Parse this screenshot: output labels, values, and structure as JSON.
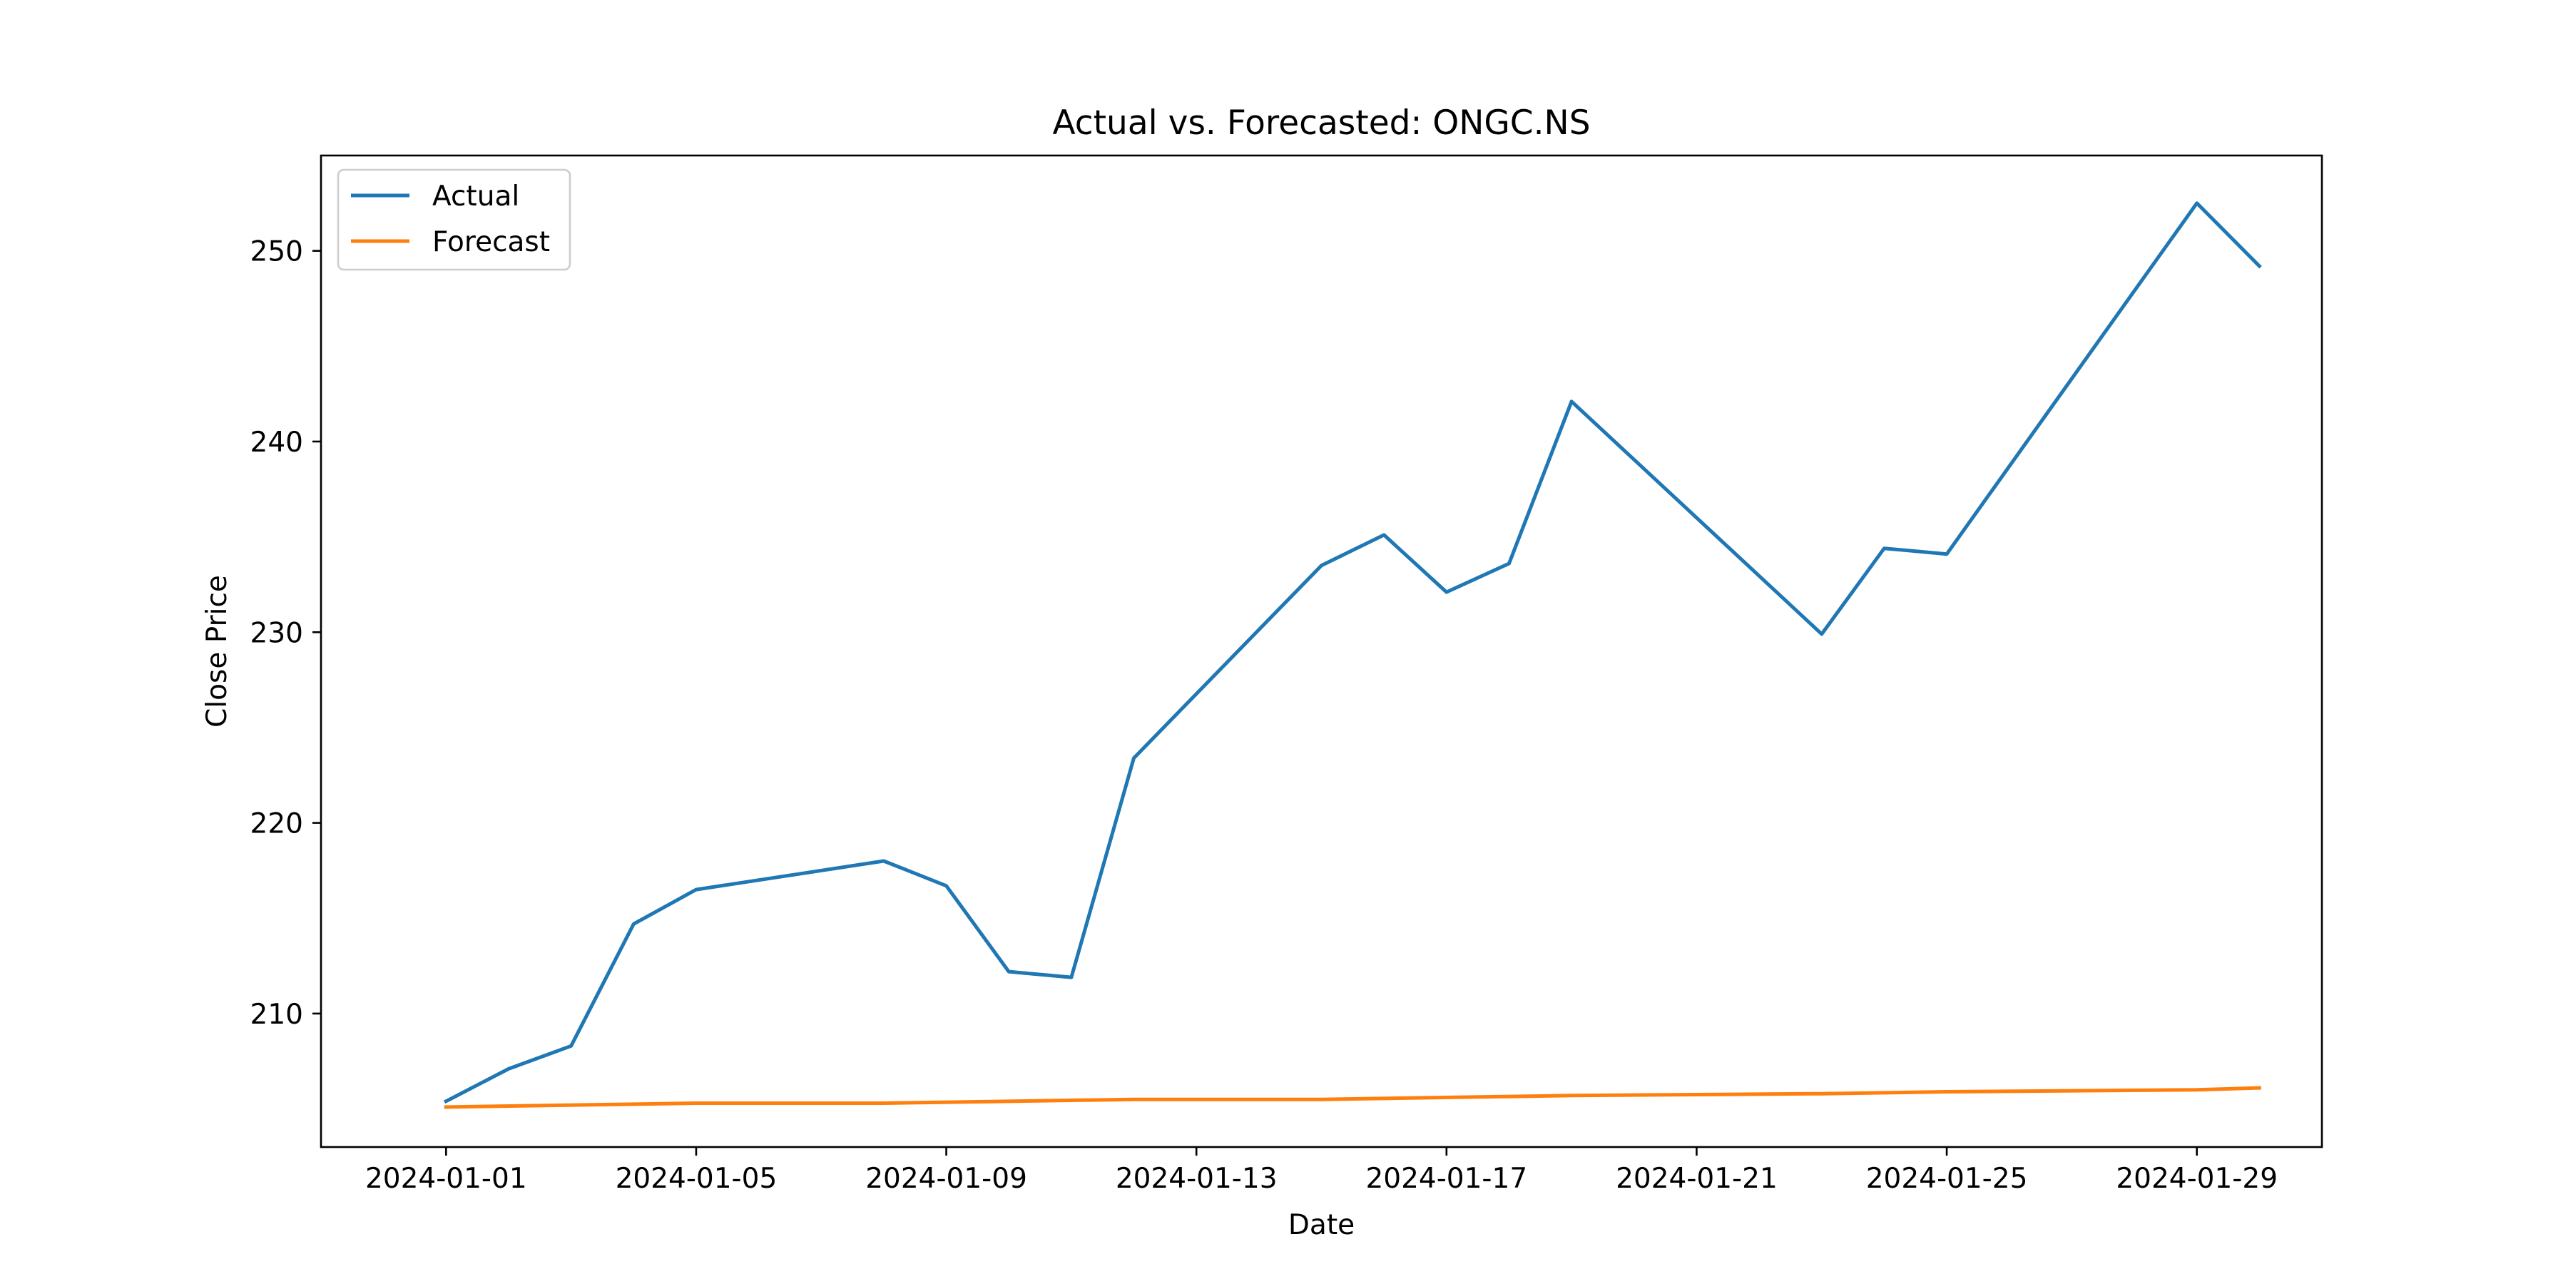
{
  "chart_data": {
    "type": "line",
    "title": "Actual vs. Forecasted: ONGC.NS",
    "xlabel": "Date",
    "ylabel": "Close Price",
    "x_axis_type": "date",
    "xlim": [
      "2023-12-30",
      "2024-01-31"
    ],
    "ylim": [
      203.0,
      255.0
    ],
    "grid": false,
    "legend_position": "upper-left",
    "x_ticks": [
      "2024-01-01",
      "2024-01-05",
      "2024-01-09",
      "2024-01-13",
      "2024-01-17",
      "2024-01-21",
      "2024-01-25",
      "2024-01-29"
    ],
    "y_ticks": [
      210,
      220,
      230,
      240,
      250
    ],
    "series": [
      {
        "name": "Actual",
        "color": "#1f77b4",
        "points": [
          {
            "x": "2024-01-01",
            "y": 205.4
          },
          {
            "x": "2024-01-02",
            "y": 207.1
          },
          {
            "x": "2024-01-03",
            "y": 208.3
          },
          {
            "x": "2024-01-04",
            "y": 214.7
          },
          {
            "x": "2024-01-05",
            "y": 216.5
          },
          {
            "x": "2024-01-08",
            "y": 218.0
          },
          {
            "x": "2024-01-09",
            "y": 216.7
          },
          {
            "x": "2024-01-10",
            "y": 212.2
          },
          {
            "x": "2024-01-11",
            "y": 211.9
          },
          {
            "x": "2024-01-12",
            "y": 223.4
          },
          {
            "x": "2024-01-15",
            "y": 233.5
          },
          {
            "x": "2024-01-16",
            "y": 235.1
          },
          {
            "x": "2024-01-17",
            "y": 232.1
          },
          {
            "x": "2024-01-18",
            "y": 233.6
          },
          {
            "x": "2024-01-19",
            "y": 242.1
          },
          {
            "x": "2024-01-23",
            "y": 229.9
          },
          {
            "x": "2024-01-24",
            "y": 234.4
          },
          {
            "x": "2024-01-25",
            "y": 234.1
          },
          {
            "x": "2024-01-29",
            "y": 252.5
          },
          {
            "x": "2024-01-30",
            "y": 249.2
          }
        ]
      },
      {
        "name": "Forecast",
        "color": "#ff7f0e",
        "points": [
          {
            "x": "2024-01-01",
            "y": 205.1
          },
          {
            "x": "2024-01-05",
            "y": 205.3
          },
          {
            "x": "2024-01-08",
            "y": 205.3
          },
          {
            "x": "2024-01-12",
            "y": 205.5
          },
          {
            "x": "2024-01-15",
            "y": 205.5
          },
          {
            "x": "2024-01-19",
            "y": 205.7
          },
          {
            "x": "2024-01-23",
            "y": 205.8
          },
          {
            "x": "2024-01-25",
            "y": 205.9
          },
          {
            "x": "2024-01-29",
            "y": 206.0
          },
          {
            "x": "2024-01-30",
            "y": 206.1
          }
        ]
      }
    ]
  }
}
